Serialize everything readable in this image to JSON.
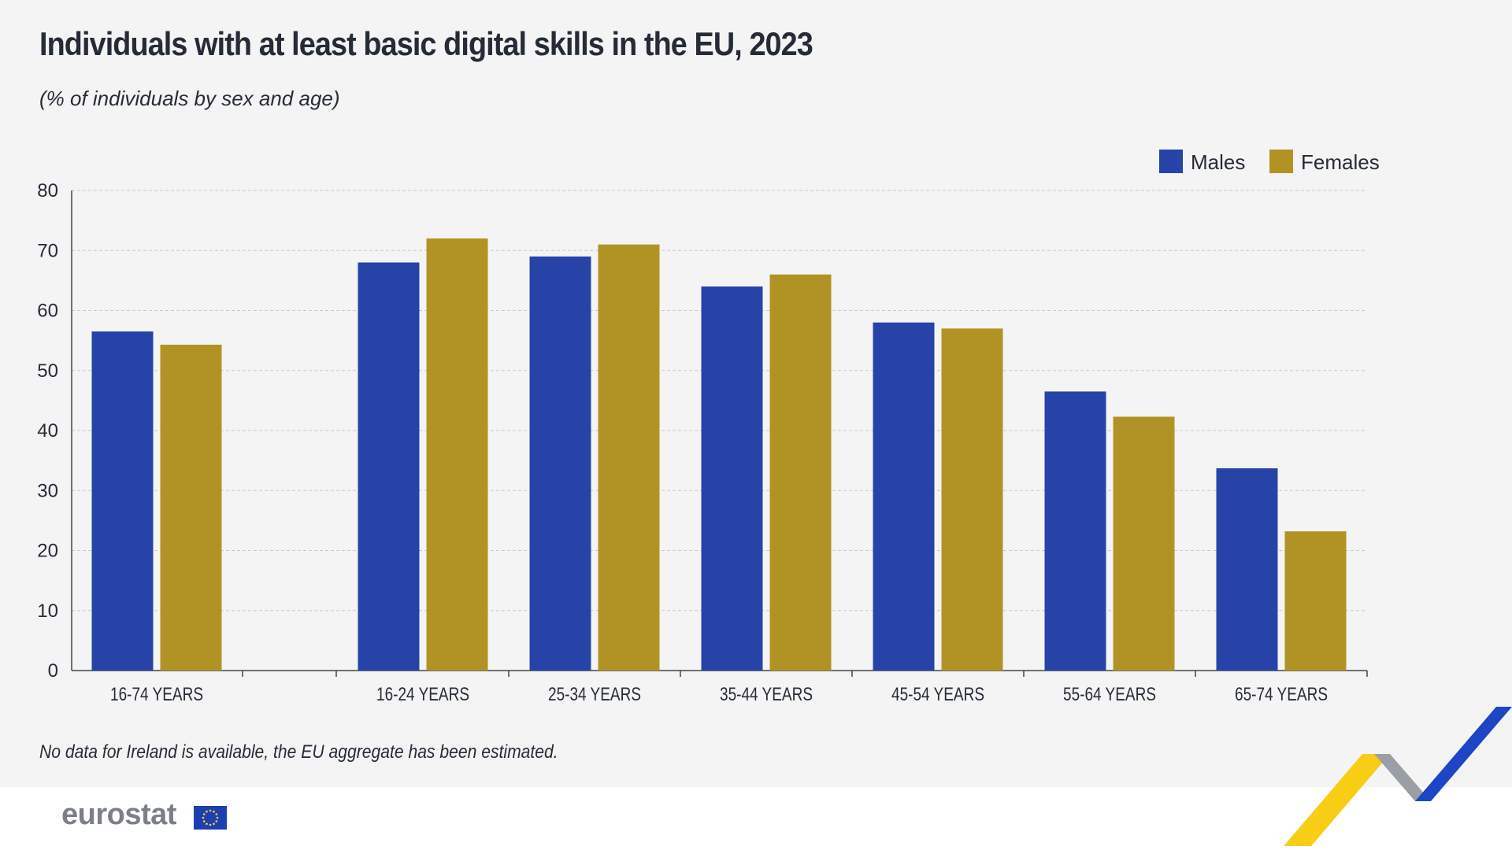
{
  "header": {
    "title": "Individuals with at least basic digital skills in the EU, 2023",
    "subtitle": "(% of individuals by sex and age)"
  },
  "note": "No data for Ireland is available, the EU aggregate has been estimated.",
  "logo": {
    "text": "eurostat"
  },
  "colors": {
    "males": "#2743a8",
    "females": "#b19325",
    "grid": "#c9c9c9",
    "axis": "#444444",
    "text": "#262b38"
  },
  "chart_data": {
    "type": "bar",
    "title": "Individuals with at least basic digital skills in the EU, 2023",
    "subtitle": "(% of individuals by sex and age)",
    "xlabel": "",
    "ylabel": "",
    "ylim": [
      0,
      80
    ],
    "yticks": [
      0,
      10,
      20,
      30,
      40,
      50,
      60,
      70,
      80
    ],
    "grid": true,
    "legend": "top-right",
    "categories": [
      "16-74 YEARS",
      "16-24 YEARS",
      "25-34 YEARS",
      "35-44 YEARS",
      "45-54 YEARS",
      "55-64 YEARS",
      "65-74 YEARS"
    ],
    "series": [
      {
        "name": "Males",
        "color": "#2743a8",
        "values": [
          56.5,
          68,
          69,
          64,
          58,
          46.5,
          33.7
        ]
      },
      {
        "name": "Females",
        "color": "#b19325",
        "values": [
          54.3,
          72,
          71,
          66,
          57,
          42.3,
          23.2
        ]
      }
    ]
  }
}
